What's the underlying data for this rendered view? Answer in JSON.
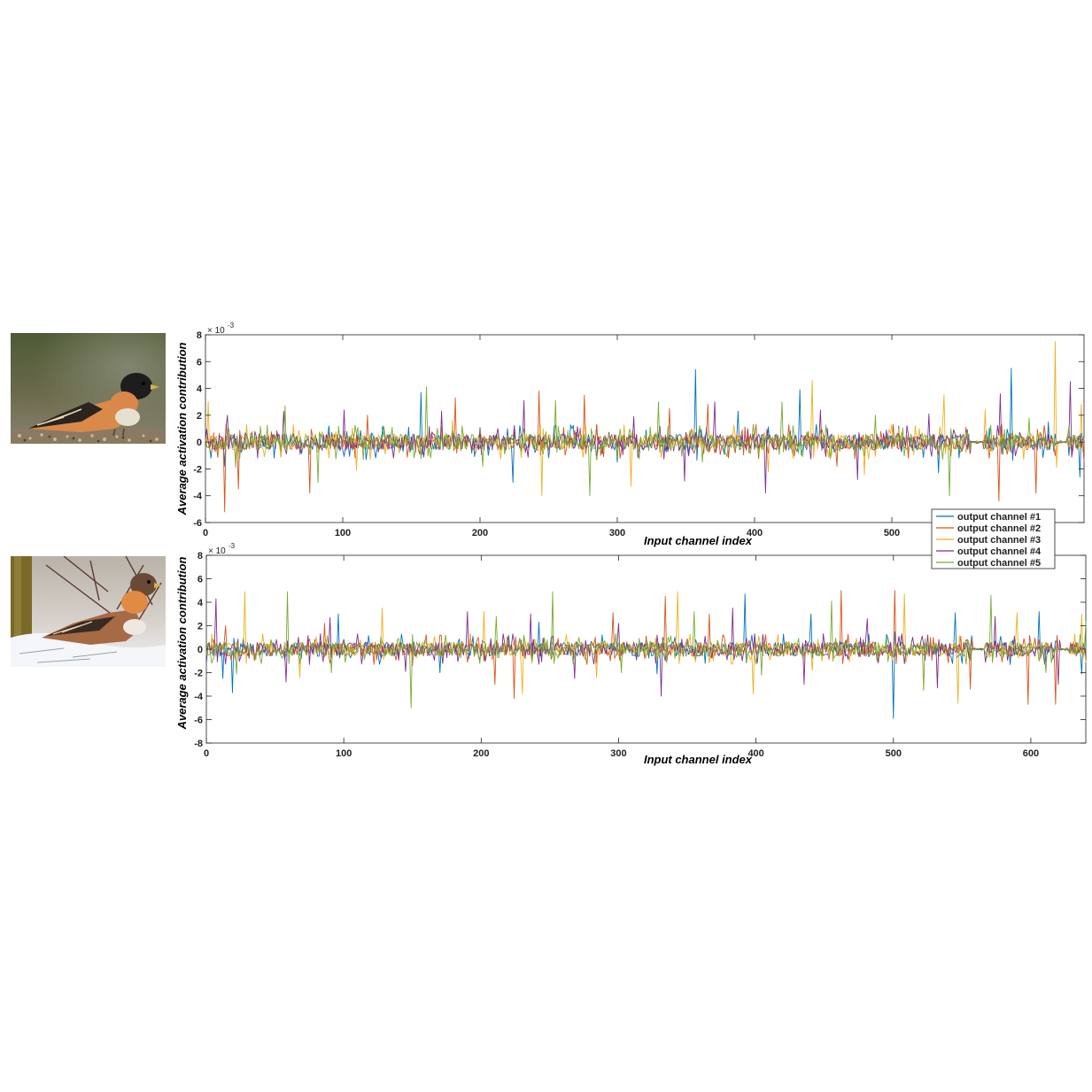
{
  "colors": {
    "series": [
      "#0072BD",
      "#D95319",
      "#EDB120",
      "#7E2F8E",
      "#77AC30"
    ],
    "axis": "#222222",
    "background": "#ffffff"
  },
  "photos": [
    {
      "name": "bird-photo-top",
      "icon": "brambling-bird-on-seeds-image"
    },
    {
      "name": "bird-photo-bottom",
      "icon": "brambling-bird-on-snow-image"
    }
  ],
  "legend": {
    "location": "top-right of lower plot",
    "entries": [
      "output channel #1",
      "output channel #2",
      "output channel #3",
      "output channel #4",
      "output channel #5"
    ]
  },
  "chart_data": [
    {
      "type": "line",
      "title": "",
      "xlabel": "Input channel index",
      "ylabel": "Average activation contribution",
      "y_multiplier": "× 10",
      "y_exponent": "-3",
      "xlim": [
        0,
        640
      ],
      "ylim": [
        -6,
        8
      ],
      "xticks": [
        0,
        100,
        200,
        300,
        400,
        500
      ],
      "yticks": [
        -6,
        -4,
        -2,
        0,
        2,
        4,
        6,
        8
      ],
      "grid": false,
      "series_names": [
        "output channel #1",
        "output channel #2",
        "output channel #3",
        "output channel #4",
        "output channel #5"
      ],
      "peaks": [
        {
          "series": 0,
          "points": [
            [
              14,
              -1.8
            ],
            [
              90,
              1.2
            ],
            [
              157,
              3.7
            ],
            [
              224,
              -3.0
            ],
            [
              300,
              -1.5
            ],
            [
              357,
              5.4
            ],
            [
              388,
              2.3
            ],
            [
              433,
              3.9
            ],
            [
              505,
              1.2
            ],
            [
              534,
              -2.3
            ],
            [
              587,
              5.5
            ],
            [
              614,
              1.5
            ],
            [
              637,
              -2.6
            ]
          ]
        },
        {
          "series": 1,
          "points": [
            [
              14,
              -5.2
            ],
            [
              24,
              -3.5
            ],
            [
              76,
              -3.8
            ],
            [
              118,
              2.0
            ],
            [
              182,
              3.3
            ],
            [
              243,
              3.8
            ],
            [
              276,
              3.5
            ],
            [
              338,
              2.5
            ],
            [
              366,
              2.8
            ],
            [
              460,
              -1.8
            ],
            [
              512,
              -1.2
            ],
            [
              578,
              -4.4
            ],
            [
              605,
              -3.8
            ],
            [
              640,
              -1.5
            ]
          ]
        },
        {
          "series": 2,
          "points": [
            [
              2,
              3.0
            ],
            [
              30,
              1.3
            ],
            [
              110,
              -2.1
            ],
            [
              180,
              1.6
            ],
            [
              245,
              -4.0
            ],
            [
              310,
              -3.3
            ],
            [
              410,
              -2.2
            ],
            [
              442,
              4.6
            ],
            [
              480,
              -2.4
            ],
            [
              538,
              3.5
            ],
            [
              568,
              2.4
            ],
            [
              619,
              7.5
            ],
            [
              638,
              2.8
            ]
          ]
        },
        {
          "series": 3,
          "points": [
            [
              16,
              2.0
            ],
            [
              57,
              2.3
            ],
            [
              101,
              2.4
            ],
            [
              172,
              2.3
            ],
            [
              232,
              3.1
            ],
            [
              312,
              1.9
            ],
            [
              349,
              -2.9
            ],
            [
              371,
              3.0
            ],
            [
              408,
              -3.8
            ],
            [
              448,
              2.4
            ],
            [
              475,
              -2.8
            ],
            [
              527,
              2.1
            ],
            [
              579,
              3.6
            ],
            [
              630,
              4.5
            ]
          ]
        },
        {
          "series": 4,
          "points": [
            [
              22,
              -1.9
            ],
            [
              58,
              2.7
            ],
            [
              82,
              -3.0
            ],
            [
              161,
              4.1
            ],
            [
              202,
              -1.8
            ],
            [
              255,
              3.1
            ],
            [
              280,
              -4.0
            ],
            [
              330,
              3.0
            ],
            [
              362,
              -1.5
            ],
            [
              420,
              3.0
            ],
            [
              488,
              2.0
            ],
            [
              542,
              -4.0
            ],
            [
              600,
              1.8
            ],
            [
              641,
              2.9
            ]
          ]
        }
      ]
    },
    {
      "type": "line",
      "title": "",
      "xlabel": "Input channel index",
      "ylabel": "Average activation contribution",
      "y_multiplier": "× 10",
      "y_exponent": "-3",
      "xlim": [
        0,
        640
      ],
      "ylim": [
        -8,
        8
      ],
      "xticks": [
        0,
        100,
        200,
        300,
        400,
        500,
        600
      ],
      "yticks": [
        -8,
        -6,
        -4,
        -2,
        0,
        2,
        4,
        6,
        8
      ],
      "grid": false,
      "series_names": [
        "output channel #1",
        "output channel #2",
        "output channel #3",
        "output channel #4",
        "output channel #5"
      ],
      "peaks": [
        {
          "series": 0,
          "points": [
            [
              12,
              -2.5
            ],
            [
              19,
              -3.7
            ],
            [
              96,
              3.0
            ],
            [
              170,
              -2.0
            ],
            [
              242,
              2.3
            ],
            [
              328,
              -2.1
            ],
            [
              392,
              4.7
            ],
            [
              440,
              3.0
            ],
            [
              500,
              -5.9
            ],
            [
              545,
              3.1
            ],
            [
              606,
              3.2
            ],
            [
              637,
              -2.1
            ]
          ]
        },
        {
          "series": 1,
          "points": [
            [
              14,
              2.0
            ],
            [
              86,
              2.2
            ],
            [
              150,
              -1.4
            ],
            [
              210,
              -3.0
            ],
            [
              224,
              -4.2
            ],
            [
              296,
              3.1
            ],
            [
              334,
              4.5
            ],
            [
              366,
              3.0
            ],
            [
              462,
              5.0
            ],
            [
              501,
              5.0
            ],
            [
              556,
              -3.4
            ],
            [
              598,
              -4.7
            ],
            [
              618,
              -4.7
            ]
          ]
        },
        {
          "series": 2,
          "points": [
            [
              4,
              1.3
            ],
            [
              28,
              4.9
            ],
            [
              68,
              -2.4
            ],
            [
              128,
              3.5
            ],
            [
              202,
              3.2
            ],
            [
              230,
              -3.8
            ],
            [
              284,
              -2.4
            ],
            [
              343,
              4.9
            ],
            [
              398,
              -3.8
            ],
            [
              441,
              -1.8
            ],
            [
              508,
              4.7
            ],
            [
              547,
              -4.6
            ],
            [
              590,
              3.1
            ],
            [
              637,
              3.0
            ]
          ]
        },
        {
          "series": 3,
          "points": [
            [
              7,
              4.3
            ],
            [
              58,
              -2.8
            ],
            [
              90,
              2.7
            ],
            [
              145,
              -1.9
            ],
            [
              190,
              3.2
            ],
            [
              236,
              3.0
            ],
            [
              268,
              -2.5
            ],
            [
              300,
              2.2
            ],
            [
              331,
              -4.0
            ],
            [
              383,
              3.5
            ],
            [
              435,
              -3.0
            ],
            [
              481,
              2.6
            ],
            [
              532,
              -3.3
            ],
            [
              574,
              2.8
            ],
            [
              620,
              -3.0
            ]
          ]
        },
        {
          "series": 4,
          "points": [
            [
              22,
              -2.1
            ],
            [
              59,
              4.9
            ],
            [
              91,
              -2.0
            ],
            [
              149,
              -5.0
            ],
            [
              211,
              2.8
            ],
            [
              252,
              4.9
            ],
            [
              302,
              -2.0
            ],
            [
              355,
              3.2
            ],
            [
              404,
              -2.2
            ],
            [
              455,
              4.1
            ],
            [
              522,
              -3.5
            ],
            [
              571,
              4.6
            ],
            [
              611,
              -2.0
            ],
            [
              640,
              2.4
            ]
          ]
        }
      ]
    }
  ]
}
